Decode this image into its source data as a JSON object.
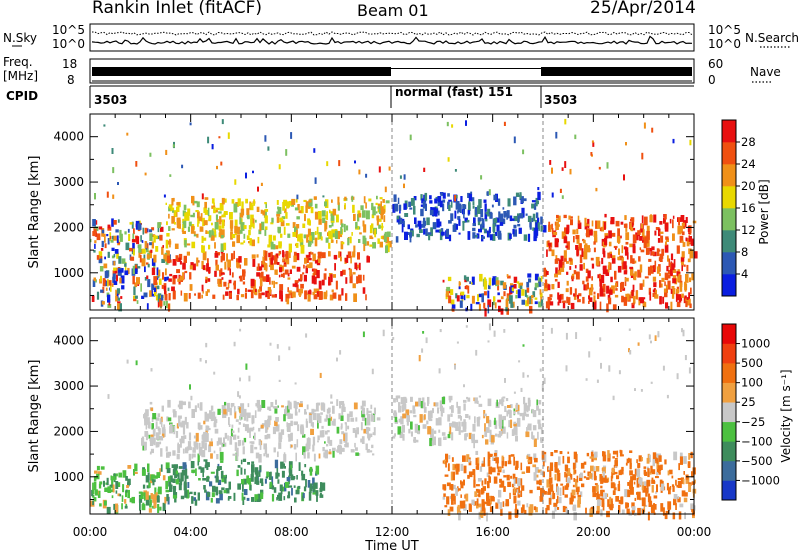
{
  "header": {
    "station": "Rankin Inlet (fitACF)",
    "beam": "Beam 01",
    "date": "25/Apr/2014"
  },
  "summary_panels": {
    "nsky": {
      "label": "N.Sky",
      "left_ticks": [
        "10^5",
        "10^0"
      ],
      "right_ticks": [
        "10^5",
        "10^0"
      ],
      "right_label": "N.Search"
    },
    "freq": {
      "label_line1": "Freq.",
      "label_line2": "[MHz]",
      "left_ticks": [
        "18",
        "8"
      ],
      "right_ticks": [
        "60",
        "0"
      ],
      "right_label": "Nave"
    },
    "cpid": {
      "label": "CPID",
      "segments": [
        {
          "start_hour": 0,
          "end_hour": 12,
          "text": "3503"
        },
        {
          "start_hour": 12,
          "end_hour": 18,
          "text": "normal (fast) 151"
        },
        {
          "start_hour": 18,
          "end_hour": 24,
          "text": "3503"
        }
      ]
    }
  },
  "chart_data": [
    {
      "type": "heatmap",
      "name": "power",
      "ylabel": "Slant Range [km]",
      "xlim_hours": [
        0,
        24
      ],
      "ylim": [
        180,
        4500
      ],
      "yticks": [
        1000,
        2000,
        3000,
        4000
      ],
      "colorbar": {
        "label": "Power [dB]",
        "ticks": [
          "4",
          "8",
          "12",
          "16",
          "20",
          "24",
          "28"
        ],
        "colors": [
          "#0a1ee0",
          "#2c58b4",
          "#3e8a78",
          "#7cc060",
          "#e8d800",
          "#f09018",
          "#f05010",
          "#e81010"
        ]
      },
      "features": [
        {
          "t0": 0.0,
          "t1": 3.1,
          "r0": 300,
          "r1": 2200,
          "level": "mixed"
        },
        {
          "t0": 2.8,
          "t1": 11.0,
          "r0": 500,
          "r1": 1500,
          "level": "high"
        },
        {
          "t0": 3.0,
          "t1": 11.9,
          "r0": 1600,
          "r1": 2700,
          "level": "medium"
        },
        {
          "t0": 12.0,
          "t1": 18.0,
          "r0": 1800,
          "r1": 2800,
          "level": "low"
        },
        {
          "t0": 14.0,
          "t1": 18.0,
          "r0": 200,
          "r1": 1000,
          "level": "mixed"
        },
        {
          "t0": 18.0,
          "t1": 24.0,
          "r0": 300,
          "r1": 2300,
          "level": "high"
        }
      ]
    },
    {
      "type": "heatmap",
      "name": "velocity",
      "xlabel": "Time UT",
      "ylabel": "Slant Range [km]",
      "xlim_hours": [
        0,
        24
      ],
      "ylim": [
        180,
        4500
      ],
      "yticks": [
        1000,
        2000,
        3000,
        4000
      ],
      "xticks": [
        "00:00",
        "04:00",
        "08:00",
        "12:00",
        "16:00",
        "20:00",
        "00:00"
      ],
      "colorbar": {
        "label": "Velocity [m s⁻¹]",
        "ticks": [
          "1000",
          "500",
          "100",
          "25",
          "−25",
          "−100",
          "−500",
          "−1000"
        ],
        "colors": [
          "#1838c8",
          "#3c6c9c",
          "#3e8c5c",
          "#4cc040",
          "#c8c8c8",
          "#f0a040",
          "#f07010",
          "#f04010",
          "#e80808"
        ]
      },
      "features": [
        {
          "t0": 0.0,
          "t1": 3.0,
          "r0": 300,
          "r1": 1300,
          "level": "toward_moderate"
        },
        {
          "t0": 2.0,
          "t1": 11.5,
          "r0": 1500,
          "r1": 2700,
          "level": "near_zero"
        },
        {
          "t0": 3.0,
          "t1": 9.2,
          "r0": 500,
          "r1": 1400,
          "level": "toward_strong"
        },
        {
          "t0": 12.0,
          "t1": 18.0,
          "r0": 1800,
          "r1": 2800,
          "level": "near_zero"
        },
        {
          "t0": 14.0,
          "t1": 24.0,
          "r0": 200,
          "r1": 1600,
          "level": "away_strong"
        }
      ]
    }
  ]
}
